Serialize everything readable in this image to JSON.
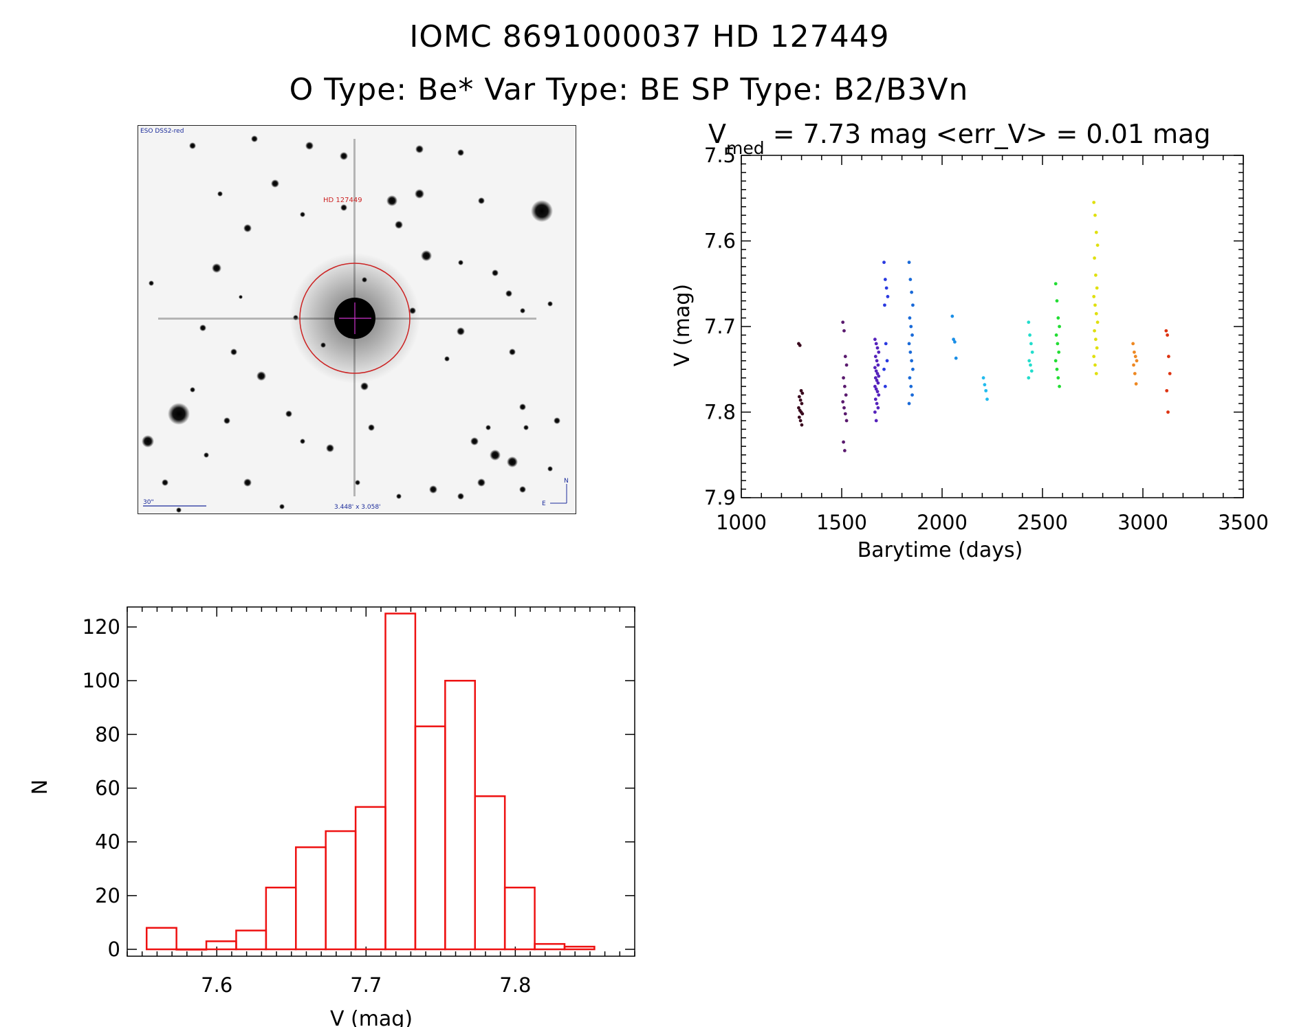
{
  "header": {
    "title_line1": "IOMC 8691000037   HD 127449",
    "title_line2": "O Type: Be*  Var Type: BE  SP Type: B2/B3Vn"
  },
  "finder_chart": {
    "survey_label": "ESO DSS2-red",
    "object_label": "HD 127449",
    "scale_label": "30\"",
    "fov_label": "3.448' x 3.058'",
    "north_label": "N",
    "east_label": "E",
    "colors": {
      "circle": "#cc2222",
      "cross": "#cc33cc",
      "labels": "#1a2a9a",
      "object_label": "#cc2222"
    }
  },
  "chart_data": [
    {
      "type": "scatter",
      "title_prefix": "V",
      "title_subscript": "med",
      "title_rest": " = 7.73 mag <err_V> = 0.01 mag",
      "xlabel": "Barytime (days)",
      "ylabel": "V (mag)",
      "xlim": [
        1000,
        3500
      ],
      "ylim": [
        7.5,
        7.9
      ],
      "y_inverted": true,
      "xticks": [
        "1000",
        "1500",
        "2000",
        "2500",
        "3000",
        "3500"
      ],
      "yticks": [
        "7.5",
        "7.6",
        "7.7",
        "7.8",
        "7.9"
      ],
      "groups": [
        {
          "x": 1295,
          "color": "#3a0a1e",
          "y": [
            7.72,
            7.722,
            7.775,
            7.778,
            7.782,
            7.786,
            7.79,
            7.795,
            7.798,
            7.8,
            7.802,
            7.806,
            7.81,
            7.815
          ]
        },
        {
          "x": 1515,
          "color": "#5a1a6e",
          "y": [
            7.695,
            7.705,
            7.735,
            7.745,
            7.76,
            7.77,
            7.78,
            7.788,
            7.795,
            7.802,
            7.81,
            7.835,
            7.845
          ]
        },
        {
          "x": 1675,
          "color": "#5522bb",
          "y": [
            7.715,
            7.72,
            7.725,
            7.73,
            7.735,
            7.74,
            7.745,
            7.748,
            7.752,
            7.755,
            7.758,
            7.76,
            7.763,
            7.766,
            7.77,
            7.773,
            7.776,
            7.78,
            7.785,
            7.79,
            7.795,
            7.8,
            7.81
          ]
        },
        {
          "x": 1720,
          "color": "#2a3ae0",
          "y": [
            7.625,
            7.645,
            7.655,
            7.665,
            7.675,
            7.72,
            7.74,
            7.75,
            7.77
          ]
        },
        {
          "x": 1845,
          "color": "#1a6ad8",
          "y": [
            7.625,
            7.645,
            7.66,
            7.675,
            7.69,
            7.7,
            7.71,
            7.72,
            7.73,
            7.74,
            7.75,
            7.76,
            7.77,
            7.78,
            7.79
          ]
        },
        {
          "x": 2060,
          "color": "#1a8ee6",
          "y": [
            7.688,
            7.715,
            7.718,
            7.737
          ]
        },
        {
          "x": 2215,
          "color": "#22bbee",
          "y": [
            7.76,
            7.768,
            7.775,
            7.785
          ]
        },
        {
          "x": 2440,
          "color": "#22ddcc",
          "y": [
            7.695,
            7.71,
            7.72,
            7.73,
            7.74,
            7.745,
            7.752,
            7.76
          ]
        },
        {
          "x": 2575,
          "color": "#22dd33",
          "y": [
            7.65,
            7.67,
            7.69,
            7.7,
            7.71,
            7.72,
            7.73,
            7.74,
            7.75,
            7.76,
            7.77
          ]
        },
        {
          "x": 2765,
          "color": "#e0e010",
          "y": [
            7.555,
            7.57,
            7.59,
            7.605,
            7.62,
            7.64,
            7.655,
            7.665,
            7.675,
            7.685,
            7.695,
            7.705,
            7.715,
            7.725,
            7.735,
            7.745,
            7.755
          ]
        },
        {
          "x": 2960,
          "color": "#ee8822",
          "y": [
            7.72,
            7.73,
            7.735,
            7.74,
            7.745,
            7.755,
            7.767
          ]
        },
        {
          "x": 3125,
          "color": "#dd3311",
          "y": [
            7.705,
            7.71,
            7.735,
            7.755,
            7.775,
            7.8
          ]
        }
      ]
    },
    {
      "type": "bar",
      "subtype": "histogram",
      "xlabel": "V (mag)",
      "ylabel": "N",
      "xlim": [
        7.54,
        7.88
      ],
      "ylim": [
        0,
        130
      ],
      "xticks": [
        "7.6",
        "7.7",
        "7.8"
      ],
      "yticks": [
        "0",
        "20",
        "40",
        "60",
        "80",
        "100",
        "120"
      ],
      "bin_width": 0.02,
      "bins": [
        {
          "x0": 7.553,
          "count": 8
        },
        {
          "x0": 7.573,
          "count": 0
        },
        {
          "x0": 7.593,
          "count": 3
        },
        {
          "x0": 7.613,
          "count": 7
        },
        {
          "x0": 7.633,
          "count": 23
        },
        {
          "x0": 7.653,
          "count": 38
        },
        {
          "x0": 7.673,
          "count": 44
        },
        {
          "x0": 7.693,
          "count": 53
        },
        {
          "x0": 7.713,
          "count": 125
        },
        {
          "x0": 7.733,
          "count": 83
        },
        {
          "x0": 7.753,
          "count": 100
        },
        {
          "x0": 7.773,
          "count": 57
        },
        {
          "x0": 7.793,
          "count": 23
        },
        {
          "x0": 7.813,
          "count": 2
        },
        {
          "x0": 7.833,
          "count": 1
        }
      ],
      "bar_color": "#ee1111"
    }
  ]
}
